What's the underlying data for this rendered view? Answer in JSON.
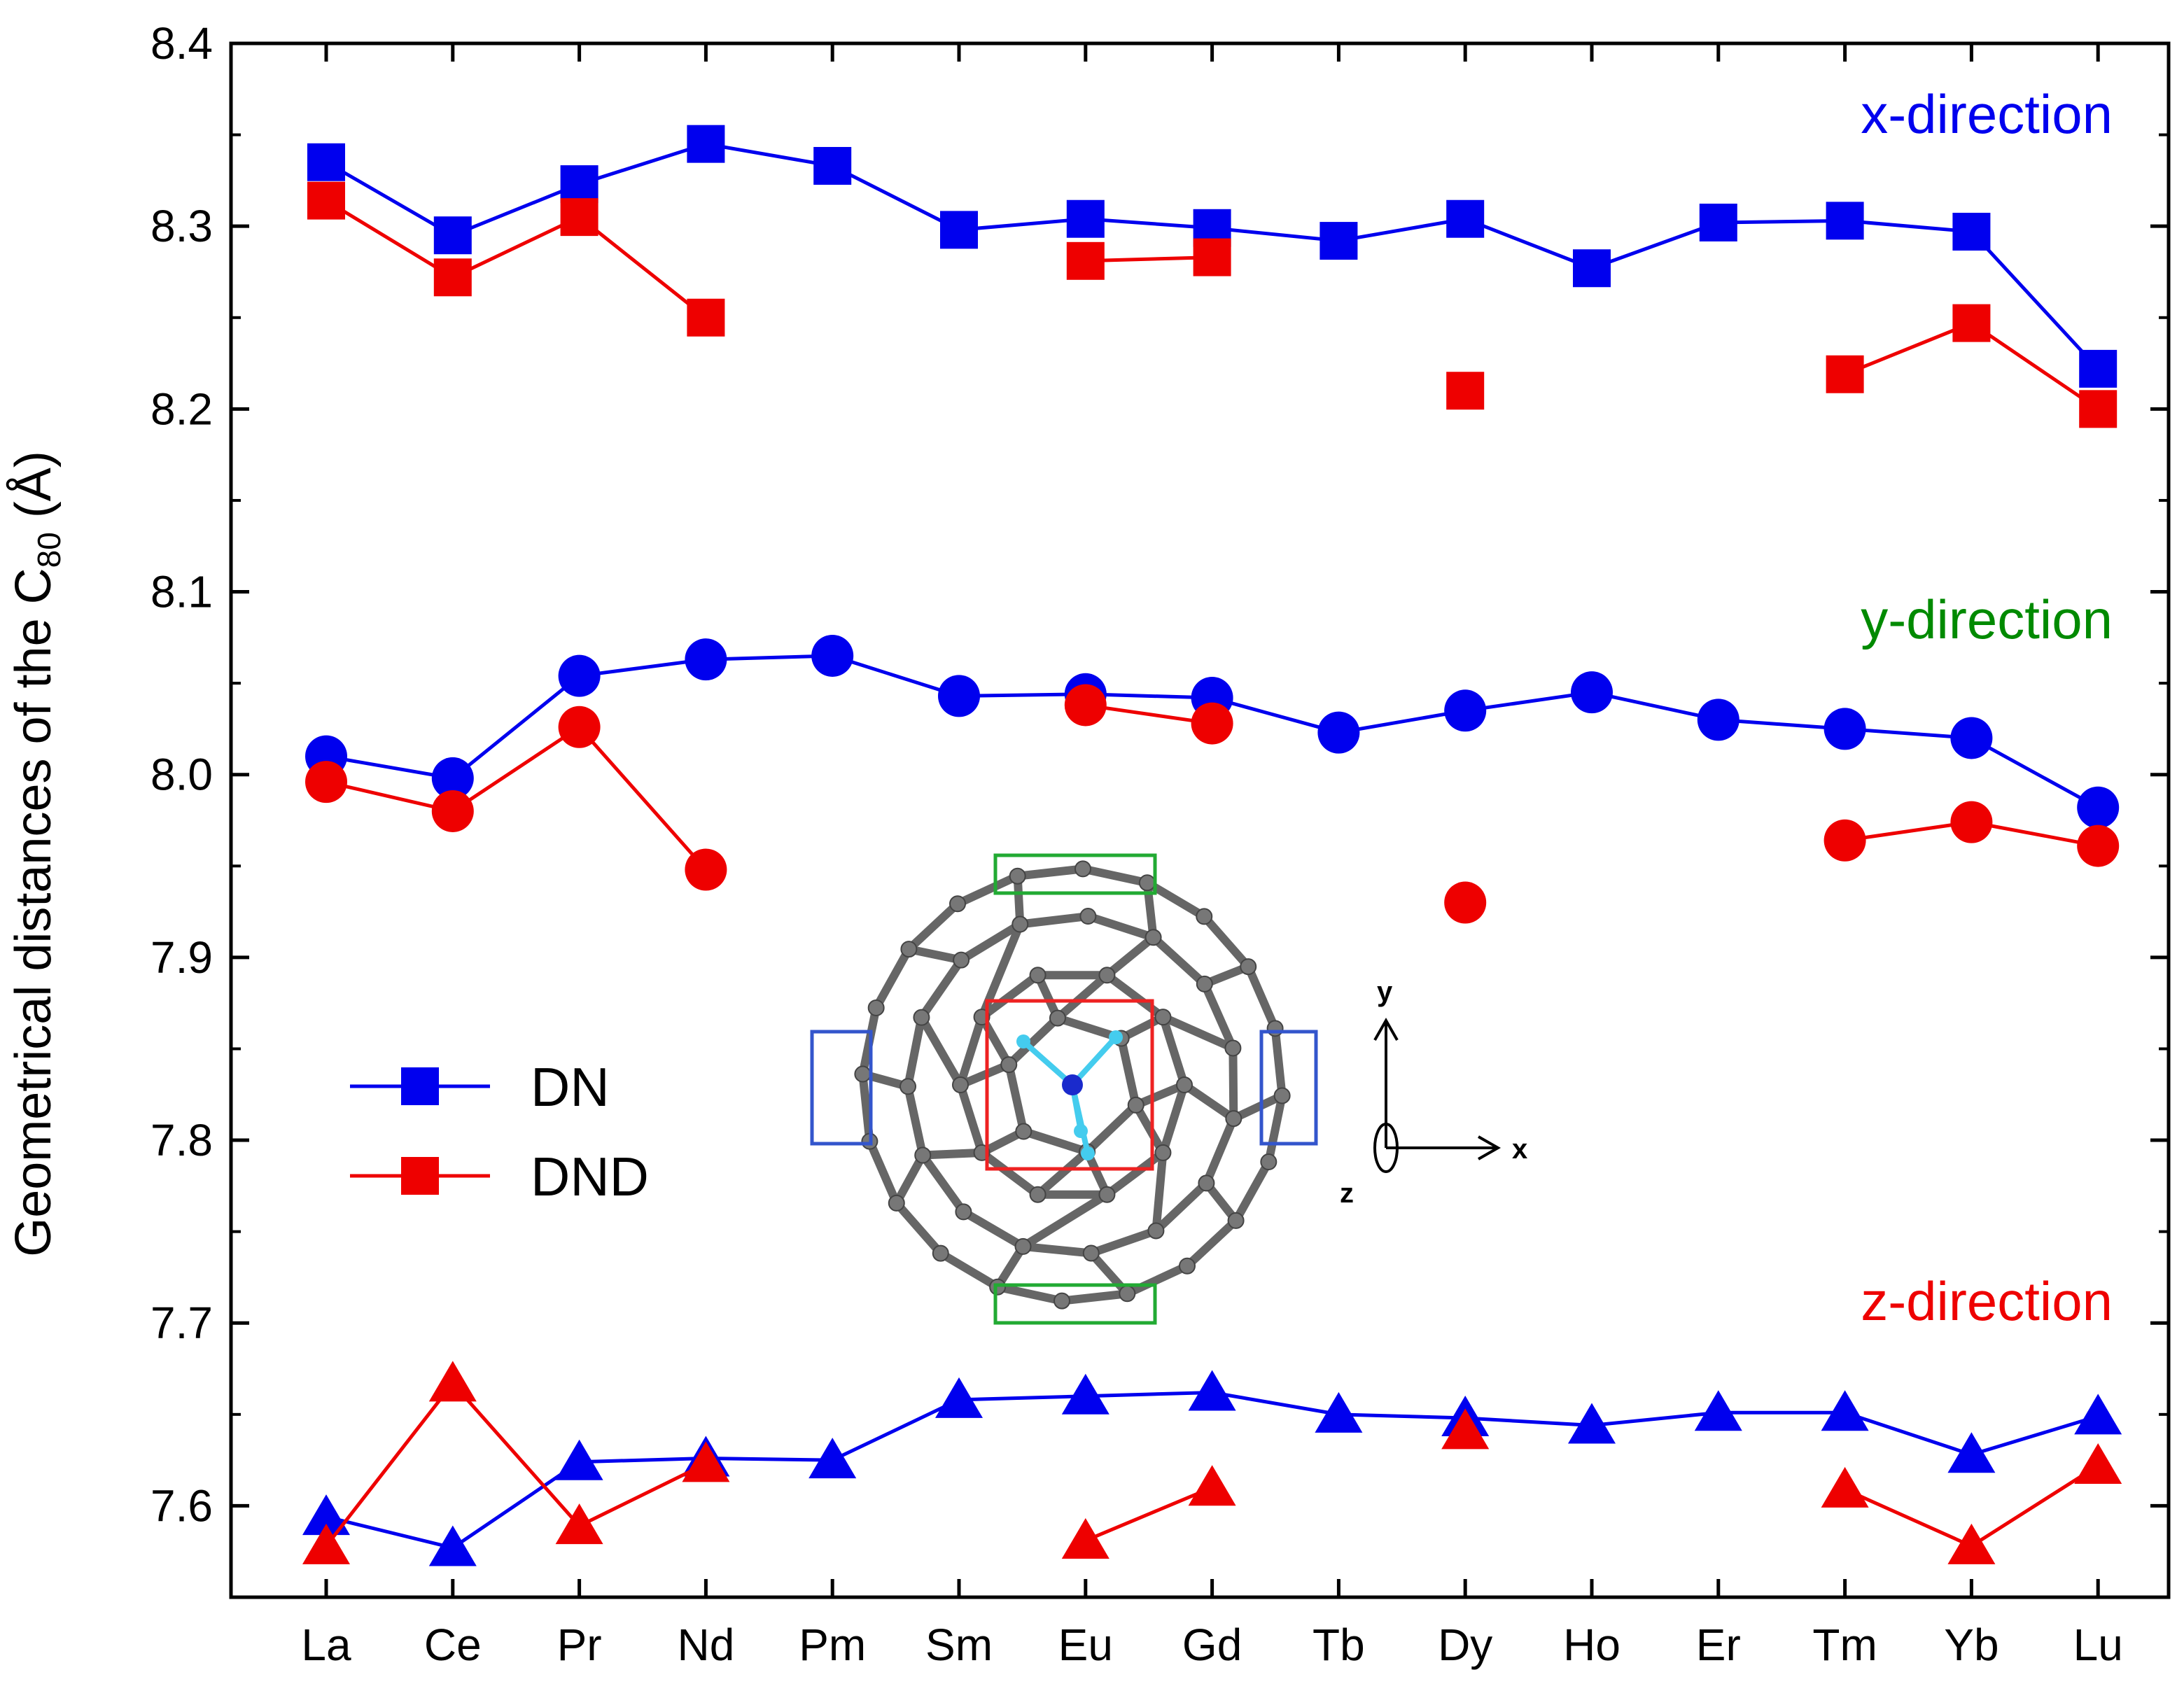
{
  "chart_data": {
    "type": "line",
    "categories": [
      "La",
      "Ce",
      "Pr",
      "Nd",
      "Pm",
      "Sm",
      "Eu",
      "Gd",
      "Tb",
      "Dy",
      "Ho",
      "Er",
      "Tm",
      "Yb",
      "Lu"
    ],
    "ylabel_main": "Geometrical distances of the C",
    "ylabel_sub": "80",
    "ylabel_tail": " (Å)",
    "ylim": [
      7.55,
      8.4
    ],
    "yticks": [
      "8.4",
      "8.3",
      "8.2",
      "8.1",
      "8.0",
      "7.9",
      "7.8",
      "7.7",
      "7.6"
    ],
    "ytick_values": [
      8.4,
      8.3,
      8.2,
      8.1,
      8.0,
      7.9,
      7.8,
      7.7,
      7.6
    ],
    "legend_position": "middle-left",
    "legend": [
      {
        "label": "DN",
        "color": "#0000ee"
      },
      {
        "label": "DND",
        "color": "#ee0000"
      }
    ],
    "annotations": [
      {
        "text": "x-direction",
        "color": "#0000ee"
      },
      {
        "text": "y-direction",
        "color": "#008a00"
      },
      {
        "text": "z-direction",
        "color": "#ee0000"
      }
    ],
    "series": [
      {
        "name": "DN",
        "direction": "x",
        "marker": "square",
        "color": "#0000ee",
        "values": [
          8.335,
          8.295,
          8.323,
          8.345,
          8.333,
          8.298,
          8.304,
          8.299,
          8.292,
          8.304,
          8.277,
          8.302,
          8.303,
          8.297,
          8.222
        ]
      },
      {
        "name": "DND",
        "direction": "x",
        "marker": "square",
        "color": "#ee0000",
        "values": [
          8.314,
          8.272,
          8.305,
          8.25,
          null,
          null,
          8.281,
          8.283,
          null,
          8.21,
          null,
          null,
          8.219,
          8.247,
          8.2
        ]
      },
      {
        "name": "DN",
        "direction": "y",
        "marker": "circle",
        "color": "#0000ee",
        "values": [
          8.01,
          7.998,
          8.054,
          8.063,
          8.065,
          8.043,
          8.044,
          8.042,
          8.023,
          8.035,
          8.045,
          8.03,
          8.025,
          8.02,
          7.982
        ]
      },
      {
        "name": "DND",
        "direction": "y",
        "marker": "circle",
        "color": "#ee0000",
        "values": [
          7.996,
          7.98,
          8.026,
          7.948,
          null,
          null,
          8.038,
          8.028,
          null,
          7.93,
          null,
          null,
          7.964,
          7.974,
          7.961
        ]
      },
      {
        "name": "DN",
        "direction": "z",
        "marker": "triangle",
        "color": "#0000ee",
        "values": [
          7.594,
          7.577,
          7.624,
          7.626,
          7.625,
          7.658,
          7.66,
          7.662,
          7.65,
          7.648,
          7.644,
          7.651,
          7.651,
          7.628,
          7.649
        ]
      },
      {
        "name": "DND",
        "direction": "z",
        "marker": "triangle",
        "color": "#ee0000",
        "values": [
          7.578,
          7.667,
          7.589,
          7.623,
          null,
          null,
          7.581,
          7.61,
          null,
          7.641,
          null,
          null,
          7.609,
          7.578,
          7.622
        ]
      }
    ]
  },
  "inset": {
    "axis_y_label": "y",
    "axis_x_label": "x",
    "axis_z_label": "z",
    "highlight_colors": {
      "green": "#22aa33",
      "red": "#ee2222",
      "blue": "#3355cc"
    },
    "atom_color": "#777777",
    "center_color": "#1a2acc",
    "h_color": "#44ccee"
  }
}
